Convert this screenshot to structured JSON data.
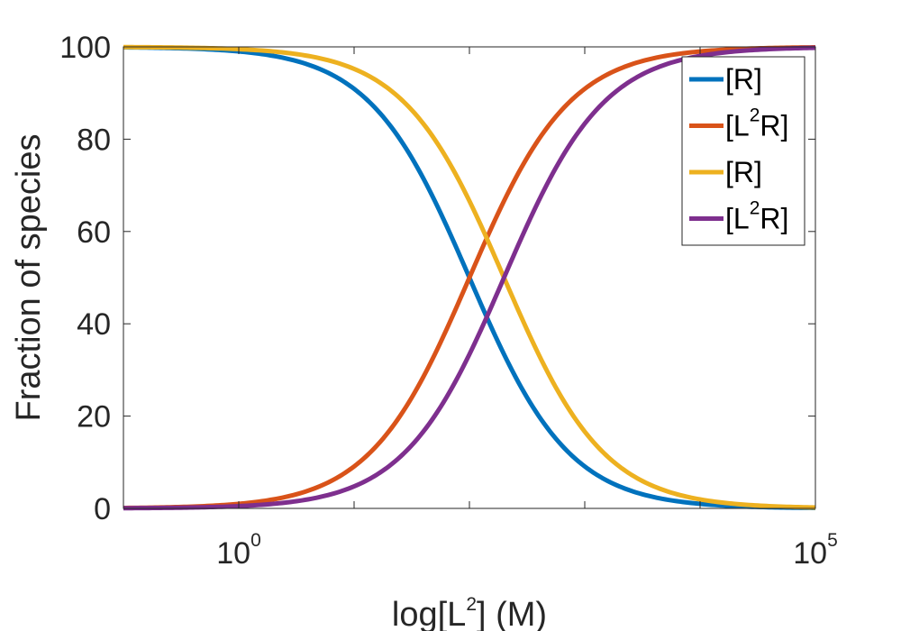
{
  "chart_data": {
    "type": "line",
    "title": "",
    "xlabel": {
      "pre": "log[L",
      "sup": "2",
      "post": "] (M)"
    },
    "ylabel": "Fraction of species",
    "x_scale": "log",
    "xlim_log10": [
      -1,
      5
    ],
    "ylim": [
      0,
      100
    ],
    "x_ticks": [
      {
        "value_log10": 0,
        "base": "10",
        "exp": "0"
      },
      {
        "value_log10": 5,
        "base": "10",
        "exp": "5"
      }
    ],
    "y_ticks": [
      0,
      20,
      40,
      60,
      80,
      100
    ],
    "grid": false,
    "legend_position": "top-right",
    "series": [
      {
        "name": "[R]",
        "legend": {
          "pre": "[R]",
          "sup": "",
          "post": ""
        },
        "color": "#0072BD",
        "kind": "decreasing",
        "midpoint_log10": 2.0,
        "points": [
          [
            -1,
            99.9
          ],
          [
            0,
            99.0
          ],
          [
            1,
            90.9
          ],
          [
            1.5,
            76.0
          ],
          [
            2,
            50.0
          ],
          [
            2.5,
            24.0
          ],
          [
            3,
            9.1
          ],
          [
            3.5,
            3.1
          ],
          [
            4,
            1.0
          ],
          [
            5,
            0.1
          ]
        ]
      },
      {
        "name": "[L2R]",
        "legend": {
          "pre": "[L",
          "sup": "2",
          "post": "R]"
        },
        "color": "#D95319",
        "kind": "increasing",
        "midpoint_log10": 2.0,
        "points": [
          [
            -1,
            0.1
          ],
          [
            0,
            1.0
          ],
          [
            1,
            9.1
          ],
          [
            1.5,
            24.0
          ],
          [
            2,
            50.0
          ],
          [
            2.5,
            76.0
          ],
          [
            3,
            90.9
          ],
          [
            3.5,
            96.9
          ],
          [
            4,
            99.0
          ],
          [
            5,
            99.9
          ]
        ]
      },
      {
        "name": "[R]",
        "legend": {
          "pre": "[R]",
          "sup": "",
          "post": ""
        },
        "color": "#EDB120",
        "kind": "decreasing",
        "midpoint_log10": 2.3,
        "points": [
          [
            -1,
            99.9
          ],
          [
            0,
            99.5
          ],
          [
            1,
            95.2
          ],
          [
            1.5,
            86.3
          ],
          [
            2,
            66.6
          ],
          [
            2.3,
            50.0
          ],
          [
            2.5,
            38.7
          ],
          [
            3,
            16.6
          ],
          [
            4,
            2.0
          ],
          [
            5,
            0.2
          ]
        ]
      },
      {
        "name": "[L2R]",
        "legend": {
          "pre": "[L",
          "sup": "2",
          "post": "R]"
        },
        "color": "#7E2F8E",
        "kind": "increasing",
        "midpoint_log10": 2.3,
        "points": [
          [
            -1,
            0.1
          ],
          [
            0,
            0.5
          ],
          [
            1,
            4.8
          ],
          [
            1.5,
            13.7
          ],
          [
            2,
            33.4
          ],
          [
            2.3,
            50.0
          ],
          [
            2.5,
            61.3
          ],
          [
            3,
            83.4
          ],
          [
            4,
            98.0
          ],
          [
            5,
            99.8
          ]
        ]
      }
    ]
  }
}
